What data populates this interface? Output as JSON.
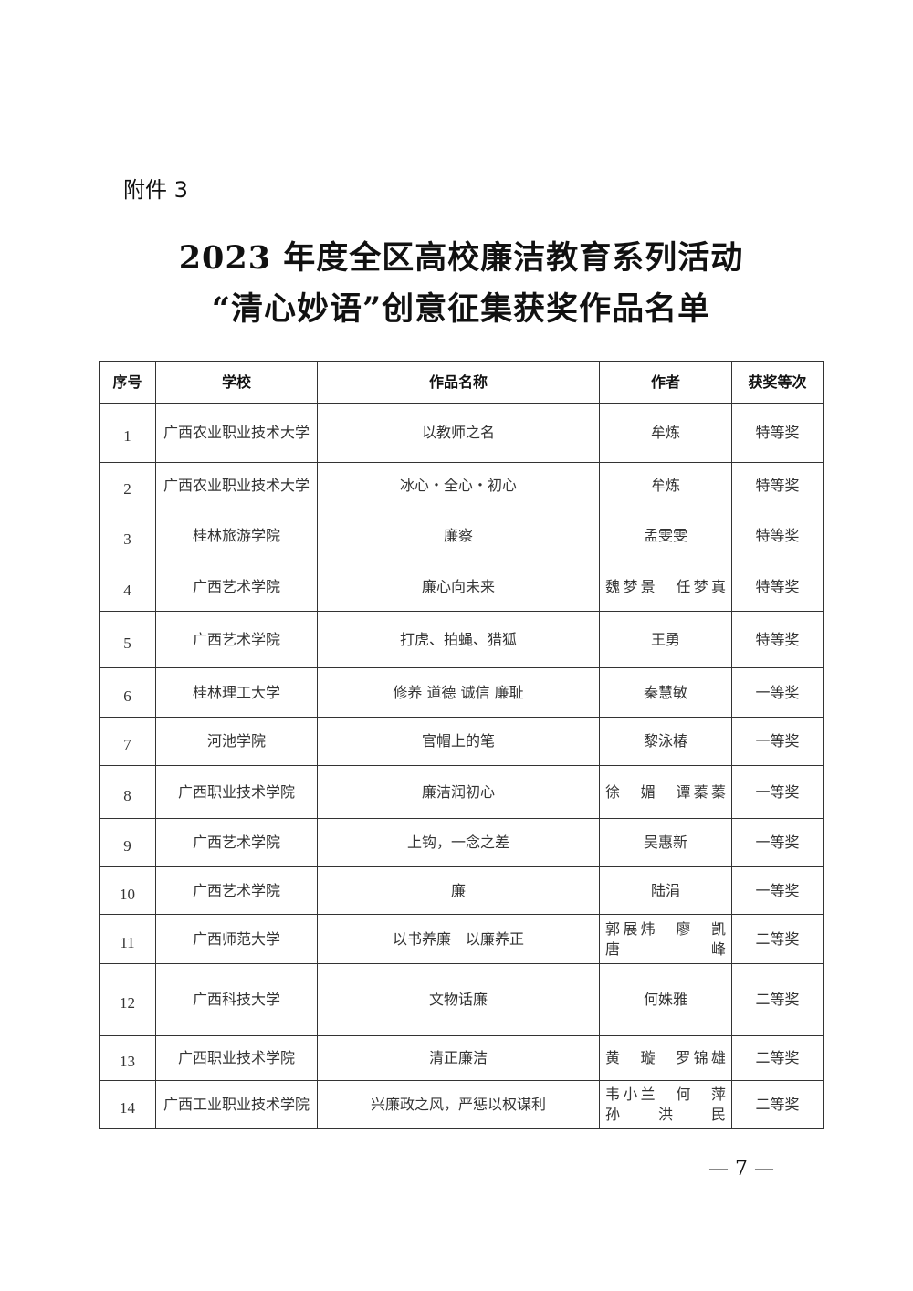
{
  "attachment": "附件 3",
  "title_line1": "2023 年度全区高校廉洁教育系列活动",
  "title_line2": "“清心妙语”创意征集获奖作品名单",
  "table": {
    "headers": [
      "序号",
      "学校",
      "作品名称",
      "作者",
      "获奖等次"
    ],
    "rows": [
      {
        "no": "1",
        "school": "广西农业职业技术大学",
        "work": "以教师之名",
        "author": "牟炼",
        "award": "特等奖"
      },
      {
        "no": "2",
        "school": "广西农业职业技术大学",
        "work": "冰心・全心・初心",
        "author": "牟炼",
        "award": "特等奖"
      },
      {
        "no": "3",
        "school": "桂林旅游学院",
        "work": "廉察",
        "author": "孟雯雯",
        "award": "特等奖"
      },
      {
        "no": "4",
        "school": "广西艺术学院",
        "work": "廉心向未来",
        "author": "魏梦景　任梦真",
        "award": "特等奖"
      },
      {
        "no": "5",
        "school": "广西艺术学院",
        "work": "打虎、拍蝇、猎狐",
        "author": "王勇",
        "award": "特等奖"
      },
      {
        "no": "6",
        "school": "桂林理工大学",
        "work": "修养 道德 诚信 廉耻",
        "author": "秦慧敏",
        "award": "一等奖"
      },
      {
        "no": "7",
        "school": "河池学院",
        "work": "官帽上的笔",
        "author": "黎泳椿",
        "award": "一等奖"
      },
      {
        "no": "8",
        "school": "广西职业技术学院",
        "work": "廉洁润初心",
        "author": "徐　媚　谭蓁蓁",
        "award": "一等奖"
      },
      {
        "no": "9",
        "school": "广西艺术学院",
        "work": "上钩，一念之差",
        "author": "吴惠新",
        "award": "一等奖"
      },
      {
        "no": "10",
        "school": "广西艺术学院",
        "work": "廉",
        "author": "陆涓",
        "award": "一等奖"
      },
      {
        "no": "11",
        "school": "广西师范大学",
        "work": "以书养廉　以廉养正",
        "author": "郭展炜　廖　凯 唐　峰",
        "award": "二等奖"
      },
      {
        "no": "12",
        "school": "广西科技大学",
        "work": "文物话廉",
        "author": "何姝雅",
        "award": "二等奖"
      },
      {
        "no": "13",
        "school": "广西职业技术学院",
        "work": "清正廉洁",
        "author": "黄　璇　罗锦雄",
        "award": "二等奖"
      },
      {
        "no": "14",
        "school": "广西工业职业技术学院",
        "work": "兴廉政之风，严惩以权谋利",
        "author": "韦小兰　何　萍 孙洪民",
        "award": "二等奖"
      }
    ]
  },
  "page_number": "— 7 —"
}
